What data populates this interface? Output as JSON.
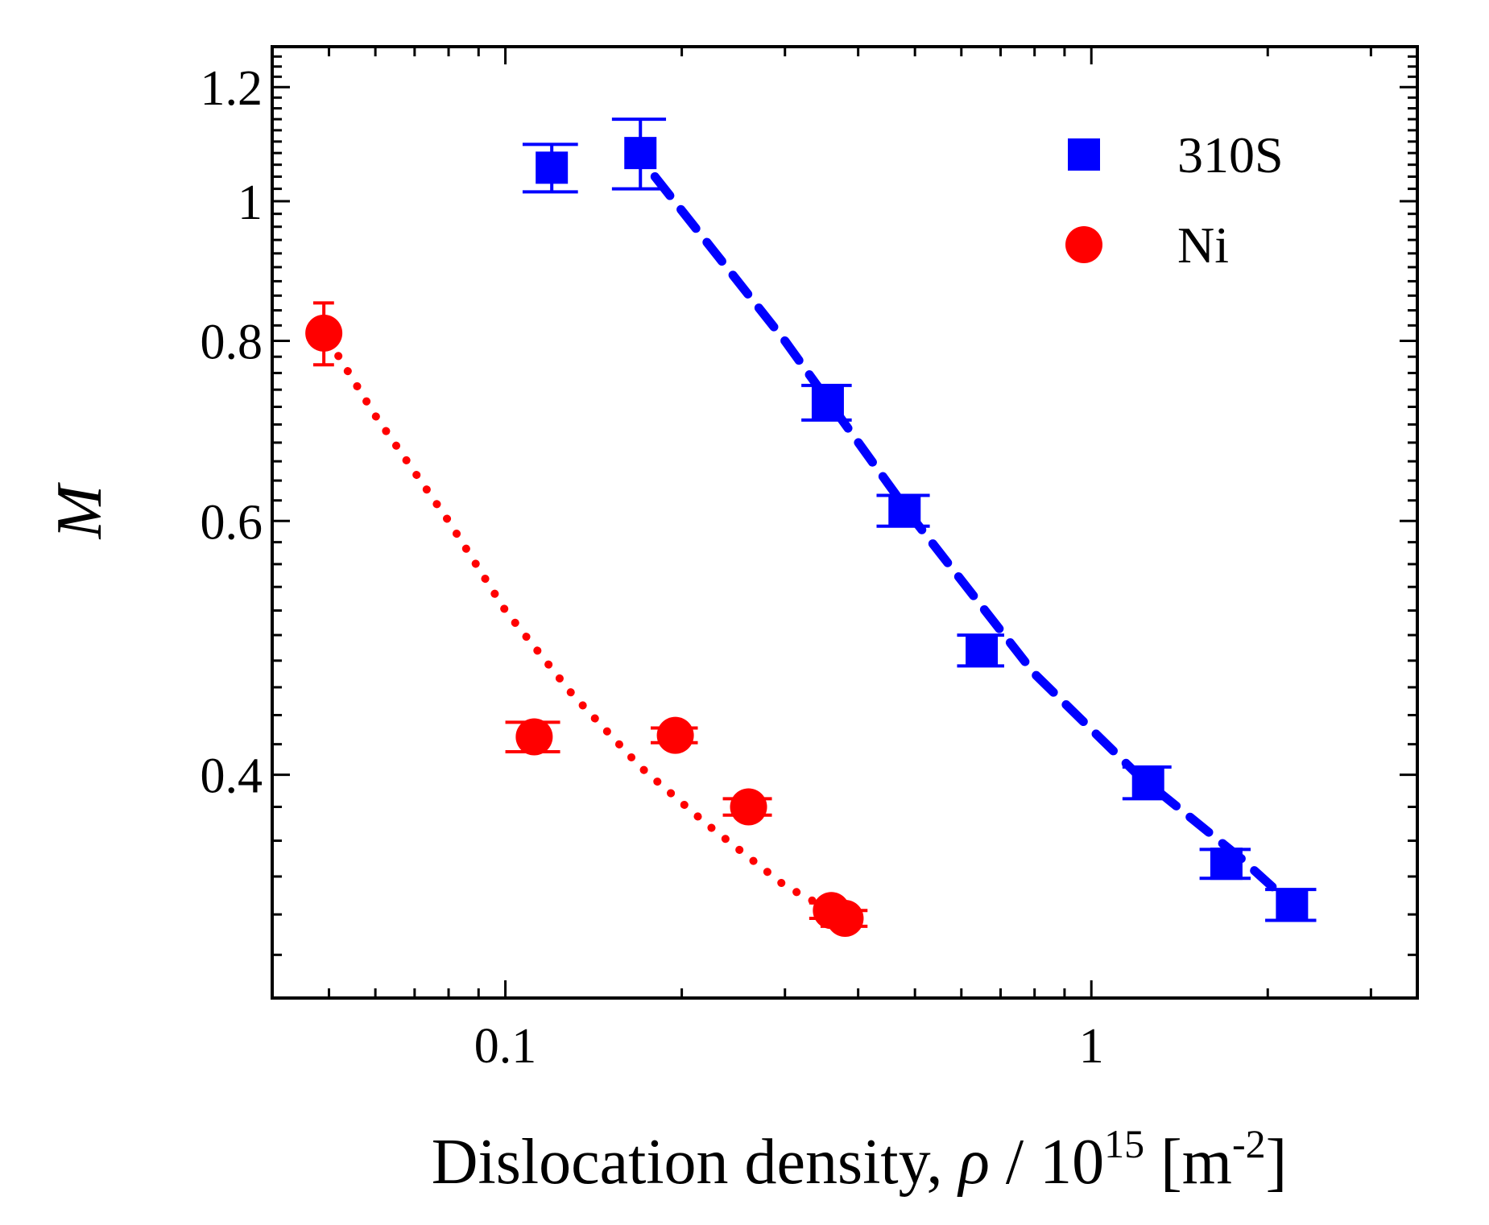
{
  "chart_data": {
    "type": "scatter",
    "title": "",
    "xlabel": {
      "prefix": "Dislocation density, ",
      "symbol": "ρ",
      "middle": " / 10",
      "exponent": "15",
      "unit_open": " [m",
      "unit_exponent": "-2",
      "unit_close": "]"
    },
    "ylabel": "M",
    "xscale": "log",
    "xlim": [
      0.04,
      3.6
    ],
    "ylim": [
      0.28,
      1.28
    ],
    "yscale": "log",
    "xticks": [
      {
        "value": 0.1,
        "label": "0.1"
      },
      {
        "value": 1,
        "label": "1"
      }
    ],
    "yticks": [
      {
        "value": 0.4,
        "label": "0.4"
      },
      {
        "value": 0.6,
        "label": "0.6"
      },
      {
        "value": 0.8,
        "label": "0.8"
      },
      {
        "value": 1.0,
        "label": "1"
      },
      {
        "value": 1.2,
        "label": "1.2"
      }
    ],
    "legend_position": "top-right",
    "series": [
      {
        "name": "310S",
        "color": "#0000ff",
        "marker": "square",
        "points": [
          {
            "x": 0.12,
            "y": 1.055,
            "xerr": 0.013,
            "yerr": 0.04
          },
          {
            "x": 0.17,
            "y": 1.08,
            "xerr": 0.018,
            "yerr": 0.06
          },
          {
            "x": 0.355,
            "y": 0.725,
            "xerr": 0.035,
            "yerr": 0.02
          },
          {
            "x": 0.48,
            "y": 0.61,
            "xerr": 0.05,
            "yerr": 0.015
          },
          {
            "x": 0.65,
            "y": 0.488,
            "xerr": 0.06,
            "yerr": 0.012
          },
          {
            "x": 1.25,
            "y": 0.395,
            "xerr": 0.12,
            "yerr": 0.01
          },
          {
            "x": 1.7,
            "y": 0.347,
            "xerr": 0.17,
            "yerr": 0.008
          },
          {
            "x": 2.2,
            "y": 0.325,
            "xerr": 0.22,
            "yerr": 0.008
          }
        ],
        "fit": {
          "style": "dashed",
          "x": [
            0.18,
            0.3,
            0.5,
            0.8,
            1.2,
            1.8,
            2.2
          ],
          "y": [
            1.04,
            0.8,
            0.6,
            0.47,
            0.4,
            0.35,
            0.325
          ]
        }
      },
      {
        "name": "Ni",
        "color": "#ff0000",
        "marker": "circle",
        "points": [
          {
            "x": 0.049,
            "y": 0.81,
            "xerr": 0.002,
            "yerr": 0.04
          },
          {
            "x": 0.112,
            "y": 0.425,
            "xerr": 0.012,
            "yerr": 0.01
          },
          {
            "x": 0.195,
            "y": 0.426,
            "xerr": 0.018,
            "yerr": 0.005
          },
          {
            "x": 0.26,
            "y": 0.38,
            "xerr": 0.025,
            "yerr": 0.005
          },
          {
            "x": 0.36,
            "y": 0.322,
            "xerr": 0.03,
            "yerr": 0.004
          },
          {
            "x": 0.38,
            "y": 0.318,
            "xerr": 0.035,
            "yerr": 0.004
          }
        ],
        "fit": {
          "style": "dotted",
          "x": [
            0.05,
            0.06,
            0.08,
            0.1,
            0.13,
            0.17,
            0.22,
            0.3,
            0.38
          ],
          "y": [
            0.8,
            0.71,
            0.6,
            0.52,
            0.455,
            0.405,
            0.37,
            0.335,
            0.318
          ]
        }
      }
    ]
  }
}
